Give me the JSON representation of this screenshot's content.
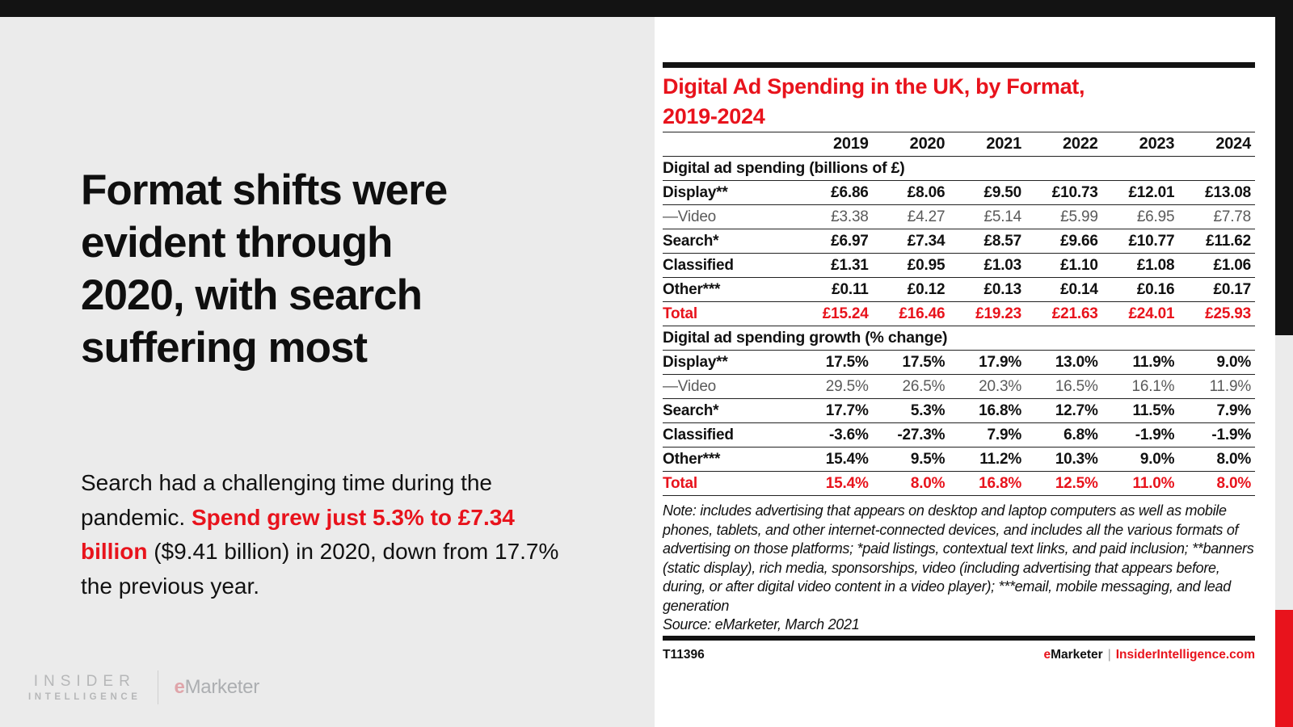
{
  "accent_red": "#e8131c",
  "panel_gray": "#ebebeb",
  "bar_black": "#131313",
  "left_panel": {
    "headline": "Format shifts were evident through 2020, with search suffering most",
    "body_before": "Search had a challenging time during the pandemic. ",
    "body_highlight": "Spend grew just 5.3% to £7.34 billion",
    "body_after": " ($9.41 billion) in 2020, down from 17.7% the previous year.",
    "logo_insider_line1": "INSIDER",
    "logo_insider_line2": "INTELLIGENCE",
    "logo_emarketer_e": "e",
    "logo_emarketer_rest": "Marketer"
  },
  "chart": {
    "title_line1": "Digital Ad Spending in the UK, by Format,",
    "title_line2": "2019-2024",
    "years": [
      "2019",
      "2020",
      "2021",
      "2022",
      "2023",
      "2024"
    ],
    "sections": [
      {
        "header": "Digital ad spending (billions of £)",
        "rows": [
          {
            "label": "Display**",
            "style": "bold",
            "values": [
              "£6.86",
              "£8.06",
              "£9.50",
              "£10.73",
              "£12.01",
              "£13.08"
            ]
          },
          {
            "label": "—Video",
            "style": "sub",
            "values": [
              "£3.38",
              "£4.27",
              "£5.14",
              "£5.99",
              "£6.95",
              "£7.78"
            ]
          },
          {
            "label": "Search*",
            "style": "bold",
            "values": [
              "£6.97",
              "£7.34",
              "£8.57",
              "£9.66",
              "£10.77",
              "£11.62"
            ]
          },
          {
            "label": "Classified",
            "style": "bold",
            "values": [
              "£1.31",
              "£0.95",
              "£1.03",
              "£1.10",
              "£1.08",
              "£1.06"
            ]
          },
          {
            "label": "Other***",
            "style": "bold",
            "values": [
              "£0.11",
              "£0.12",
              "£0.13",
              "£0.14",
              "£0.16",
              "£0.17"
            ]
          },
          {
            "label": "Total",
            "style": "total",
            "values": [
              "£15.24",
              "£16.46",
              "£19.23",
              "£21.63",
              "£24.01",
              "£25.93"
            ]
          }
        ]
      },
      {
        "header": "Digital ad spending growth (% change)",
        "rows": [
          {
            "label": "Display**",
            "style": "bold",
            "values": [
              "17.5%",
              "17.5%",
              "17.9%",
              "13.0%",
              "11.9%",
              "9.0%"
            ]
          },
          {
            "label": "—Video",
            "style": "sub",
            "values": [
              "29.5%",
              "26.5%",
              "20.3%",
              "16.5%",
              "16.1%",
              "11.9%"
            ]
          },
          {
            "label": "Search*",
            "style": "bold",
            "values": [
              "17.7%",
              "5.3%",
              "16.8%",
              "12.7%",
              "11.5%",
              "7.9%"
            ]
          },
          {
            "label": "Classified",
            "style": "bold",
            "values": [
              "-3.6%",
              "-27.3%",
              "7.9%",
              "6.8%",
              "-1.9%",
              "-1.9%"
            ]
          },
          {
            "label": "Other***",
            "style": "bold",
            "values": [
              "15.4%",
              "9.5%",
              "11.2%",
              "10.3%",
              "9.0%",
              "8.0%"
            ]
          },
          {
            "label": "Total",
            "style": "total",
            "values": [
              "15.4%",
              "8.0%",
              "16.8%",
              "12.5%",
              "11.0%",
              "8.0%"
            ]
          }
        ]
      }
    ],
    "note": "Note: includes advertising that appears on desktop and laptop computers as well as mobile phones, tablets, and other internet-connected devices, and includes all the various formats of advertising on those platforms; *paid listings, contextual text links, and paid inclusion; **banners (static display), rich media, sponsorships, video (including advertising that appears before, during, or after digital video content in a video player); ***email, mobile messaging, and lead generation",
    "source": "Source: eMarketer, March 2021",
    "footer_id": "T11396",
    "footer_brand_e": "e",
    "footer_brand_rest": "Marketer",
    "footer_separator": "|",
    "footer_site": "InsiderIntelligence.com"
  },
  "chart_data": {
    "type": "table",
    "title": "Digital Ad Spending in the UK, by Format, 2019-2024",
    "categories": [
      2019,
      2020,
      2021,
      2022,
      2023,
      2024
    ],
    "sections": [
      {
        "label": "Digital ad spending (billions of £)",
        "series": [
          {
            "name": "Display**",
            "values": [
              6.86,
              8.06,
              9.5,
              10.73,
              12.01,
              13.08
            ]
          },
          {
            "name": "—Video",
            "values": [
              3.38,
              4.27,
              5.14,
              5.99,
              6.95,
              7.78
            ]
          },
          {
            "name": "Search*",
            "values": [
              6.97,
              7.34,
              8.57,
              9.66,
              10.77,
              11.62
            ]
          },
          {
            "name": "Classified",
            "values": [
              1.31,
              0.95,
              1.03,
              1.1,
              1.08,
              1.06
            ]
          },
          {
            "name": "Other***",
            "values": [
              0.11,
              0.12,
              0.13,
              0.14,
              0.16,
              0.17
            ]
          },
          {
            "name": "Total",
            "values": [
              15.24,
              16.46,
              19.23,
              21.63,
              24.01,
              25.93
            ]
          }
        ]
      },
      {
        "label": "Digital ad spending growth (% change)",
        "series": [
          {
            "name": "Display**",
            "values": [
              17.5,
              17.5,
              17.9,
              13.0,
              11.9,
              9.0
            ]
          },
          {
            "name": "—Video",
            "values": [
              29.5,
              26.5,
              20.3,
              16.5,
              16.1,
              11.9
            ]
          },
          {
            "name": "Search*",
            "values": [
              17.7,
              5.3,
              16.8,
              12.7,
              11.5,
              7.9
            ]
          },
          {
            "name": "Classified",
            "values": [
              -3.6,
              -27.3,
              7.9,
              6.8,
              -1.9,
              -1.9
            ]
          },
          {
            "name": "Other***",
            "values": [
              15.4,
              9.5,
              11.2,
              10.3,
              9.0,
              8.0
            ]
          },
          {
            "name": "Total",
            "values": [
              15.4,
              8.0,
              16.8,
              12.5,
              11.0,
              8.0
            ]
          }
        ]
      }
    ]
  }
}
